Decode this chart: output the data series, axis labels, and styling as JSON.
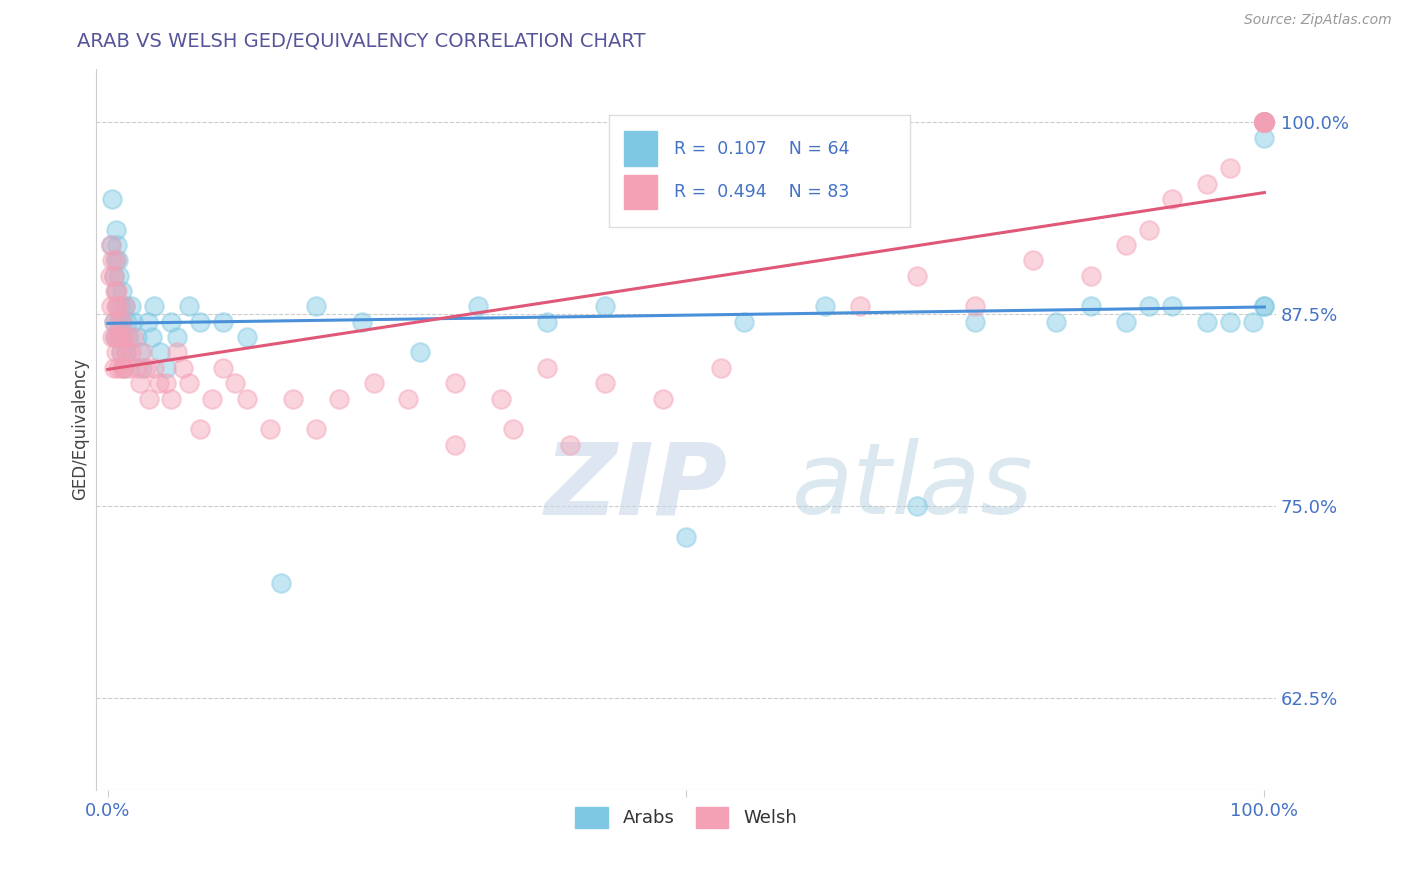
{
  "title": "ARAB VS WELSH GED/EQUIVALENCY CORRELATION CHART",
  "source": "Source: ZipAtlas.com",
  "ylabel": "GED/Equivalency",
  "yticks": [
    0.625,
    0.75,
    0.875,
    1.0
  ],
  "ytick_labels": [
    "62.5%",
    "75.0%",
    "87.5%",
    "100.0%"
  ],
  "arab_R": 0.107,
  "arab_N": 64,
  "welsh_R": 0.494,
  "welsh_N": 83,
  "arab_color": "#7ec8e3",
  "welsh_color": "#f4a0b5",
  "arab_line_color": "#4a90d9",
  "welsh_line_color": "#e05878",
  "background_color": "#ffffff",
  "watermark_zip": "ZIP",
  "watermark_atlas": "atlas",
  "title_color": "#555599",
  "tick_color": "#4472c4",
  "ylabel_color": "#444444",
  "source_color": "#999999"
}
